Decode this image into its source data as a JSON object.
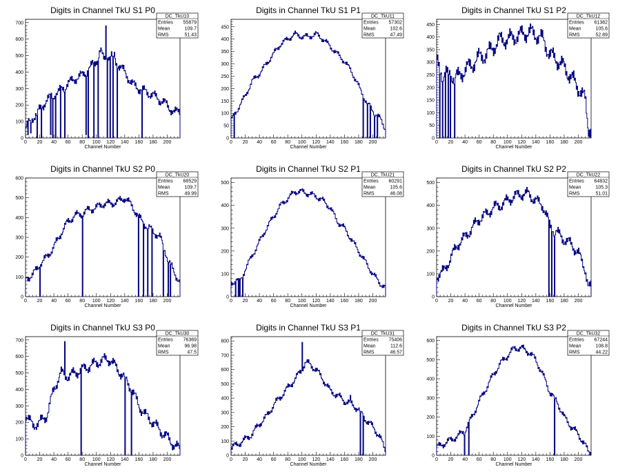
{
  "xlabel_text": "Channel Number",
  "stat_labels": [
    "Entries",
    "Mean",
    "RMS"
  ],
  "line_color": "#00007f",
  "chart_data": [
    {
      "type": "bar",
      "title": "Digits in Channel TkU S1 P0",
      "stat_name": "DC_TkU10",
      "entries": "55879",
      "mean": "109.7",
      "rms": "51.43",
      "xlabel": "Channel Number",
      "xlim": [
        0,
        218
      ],
      "ylim": [
        0,
        720
      ],
      "xticks": [
        0,
        20,
        40,
        60,
        80,
        100,
        120,
        140,
        160,
        180,
        200
      ],
      "yticks": [
        0,
        100,
        200,
        300,
        400,
        500,
        600,
        700
      ],
      "anchors": [
        [
          0,
          60
        ],
        [
          10,
          120
        ],
        [
          20,
          170
        ],
        [
          30,
          230
        ],
        [
          40,
          260
        ],
        [
          50,
          290
        ],
        [
          60,
          330
        ],
        [
          70,
          360
        ],
        [
          80,
          380
        ],
        [
          90,
          420
        ],
        [
          100,
          470
        ],
        [
          106,
          530
        ],
        [
          110,
          480
        ],
        [
          120,
          500
        ],
        [
          130,
          450
        ],
        [
          140,
          400
        ],
        [
          150,
          330
        ],
        [
          160,
          300
        ],
        [
          170,
          280
        ],
        [
          180,
          260
        ],
        [
          190,
          230
        ],
        [
          200,
          200
        ],
        [
          210,
          150
        ],
        [
          217,
          170
        ]
      ],
      "amp": 35,
      "dips": [
        [
          3,
          20
        ],
        [
          7,
          30
        ],
        [
          16,
          0
        ],
        [
          22,
          0
        ],
        [
          35,
          20
        ],
        [
          38,
          0
        ],
        [
          42,
          0
        ],
        [
          49,
          0
        ],
        [
          55,
          0
        ],
        [
          85,
          20
        ],
        [
          88,
          0
        ],
        [
          96,
          0
        ],
        [
          102,
          0
        ],
        [
          113,
          680
        ],
        [
          115,
          0
        ],
        [
          119,
          0
        ],
        [
          123,
          0
        ],
        [
          125,
          520
        ],
        [
          129,
          0
        ],
        [
          164,
          0
        ]
      ]
    },
    {
      "type": "bar",
      "title": "Digits in Channel TkU S1 P1",
      "stat_name": "DC_TkU11",
      "entries": "57302",
      "mean": "102.6",
      "rms": "47.49",
      "xlabel": "Channel Number",
      "xlim": [
        0,
        218
      ],
      "ylim": [
        0,
        480
      ],
      "xticks": [
        0,
        20,
        40,
        60,
        80,
        100,
        120,
        140,
        160,
        180,
        200
      ],
      "yticks": [
        0,
        50,
        100,
        150,
        200,
        250,
        300,
        350,
        400,
        450
      ],
      "anchors": [
        [
          0,
          70
        ],
        [
          10,
          120
        ],
        [
          20,
          170
        ],
        [
          30,
          230
        ],
        [
          40,
          260
        ],
        [
          50,
          300
        ],
        [
          60,
          340
        ],
        [
          70,
          380
        ],
        [
          80,
          400
        ],
        [
          90,
          420
        ],
        [
          100,
          410
        ],
        [
          110,
          410
        ],
        [
          120,
          420
        ],
        [
          130,
          400
        ],
        [
          140,
          370
        ],
        [
          150,
          340
        ],
        [
          160,
          310
        ],
        [
          170,
          270
        ],
        [
          180,
          210
        ],
        [
          190,
          150
        ],
        [
          200,
          110
        ],
        [
          210,
          80
        ],
        [
          217,
          40
        ]
      ],
      "amp": 14,
      "dips": [
        [
          4,
          0
        ],
        [
          186,
          0
        ],
        [
          192,
          0
        ],
        [
          196,
          0
        ],
        [
          202,
          0
        ],
        [
          206,
          0
        ]
      ]
    },
    {
      "type": "bar",
      "title": "Digits in Channel TkU S1 P2",
      "stat_name": "DC_TkU12",
      "entries": "61382",
      "mean": "105.6",
      "rms": "52.89",
      "xlabel": "Channel Number",
      "xlim": [
        0,
        218
      ],
      "ylim": [
        0,
        470
      ],
      "xticks": [
        0,
        20,
        40,
        60,
        80,
        100,
        120,
        140,
        160,
        180,
        200
      ],
      "yticks": [
        0,
        50,
        100,
        150,
        200,
        250,
        300,
        350,
        400,
        450
      ],
      "anchors": [
        [
          0,
          300
        ],
        [
          10,
          250
        ],
        [
          20,
          250
        ],
        [
          30,
          240
        ],
        [
          40,
          270
        ],
        [
          50,
          290
        ],
        [
          60,
          320
        ],
        [
          70,
          330
        ],
        [
          80,
          360
        ],
        [
          90,
          390
        ],
        [
          100,
          390
        ],
        [
          110,
          400
        ],
        [
          120,
          410
        ],
        [
          130,
          420
        ],
        [
          140,
          410
        ],
        [
          150,
          390
        ],
        [
          160,
          330
        ],
        [
          170,
          310
        ],
        [
          180,
          280
        ],
        [
          190,
          240
        ],
        [
          200,
          200
        ],
        [
          210,
          150
        ],
        [
          214,
          40
        ]
      ],
      "amp": 40,
      "dips": [
        [
          4,
          0
        ],
        [
          8,
          0
        ],
        [
          12,
          0
        ],
        [
          16,
          0
        ],
        [
          19,
          0
        ],
        [
          25,
          0
        ]
      ]
    },
    {
      "type": "bar",
      "title": "Digits in Channel TkU S2 P0",
      "stat_name": "DC_TkU20",
      "entries": "68529",
      "mean": "109.7",
      "rms": "49.99",
      "xlabel": "Channel Number",
      "xlim": [
        0,
        218
      ],
      "ylim": [
        0,
        600
      ],
      "xticks": [
        0,
        20,
        40,
        60,
        80,
        100,
        120,
        140,
        160,
        180,
        200
      ],
      "yticks": [
        0,
        100,
        200,
        300,
        400,
        500,
        600
      ],
      "anchors": [
        [
          0,
          90
        ],
        [
          10,
          110
        ],
        [
          20,
          160
        ],
        [
          30,
          200
        ],
        [
          40,
          250
        ],
        [
          50,
          320
        ],
        [
          60,
          380
        ],
        [
          70,
          410
        ],
        [
          80,
          420
        ],
        [
          90,
          440
        ],
        [
          100,
          450
        ],
        [
          110,
          470
        ],
        [
          120,
          470
        ],
        [
          130,
          480
        ],
        [
          140,
          500
        ],
        [
          150,
          460
        ],
        [
          160,
          400
        ],
        [
          170,
          360
        ],
        [
          180,
          330
        ],
        [
          190,
          300
        ],
        [
          200,
          200
        ],
        [
          210,
          120
        ],
        [
          217,
          80
        ]
      ],
      "amp": 24,
      "dips": [
        [
          20,
          0
        ],
        [
          80,
          0
        ],
        [
          159,
          0
        ],
        [
          166,
          0
        ],
        [
          172,
          0
        ],
        [
          178,
          0
        ],
        [
          194,
          0
        ],
        [
          201,
          0
        ],
        [
          204,
          0
        ]
      ]
    },
    {
      "type": "bar",
      "title": "Digits in Channel TkU S2 P1",
      "stat_name": "DC_TkU21",
      "entries": "60291",
      "mean": "105.6",
      "rms": "46.08",
      "xlabel": "Channel Number",
      "xlim": [
        0,
        218
      ],
      "ylim": [
        0,
        520
      ],
      "xticks": [
        0,
        20,
        40,
        60,
        80,
        100,
        120,
        140,
        160,
        180,
        200
      ],
      "yticks": [
        0,
        100,
        200,
        300,
        400,
        500
      ],
      "anchors": [
        [
          0,
          60
        ],
        [
          15,
          80
        ],
        [
          20,
          120
        ],
        [
          30,
          180
        ],
        [
          40,
          240
        ],
        [
          50,
          300
        ],
        [
          60,
          350
        ],
        [
          70,
          400
        ],
        [
          80,
          430
        ],
        [
          90,
          460
        ],
        [
          100,
          460
        ],
        [
          110,
          450
        ],
        [
          120,
          440
        ],
        [
          130,
          420
        ],
        [
          140,
          390
        ],
        [
          150,
          330
        ],
        [
          160,
          300
        ],
        [
          170,
          250
        ],
        [
          180,
          200
        ],
        [
          190,
          150
        ],
        [
          200,
          100
        ],
        [
          210,
          60
        ],
        [
          217,
          40
        ]
      ],
      "amp": 16,
      "dips": [
        [
          6,
          0
        ],
        [
          10,
          0
        ],
        [
          12,
          0
        ],
        [
          16,
          0
        ]
      ]
    },
    {
      "type": "bar",
      "title": "Digits in Channel TkU S2 P2",
      "stat_name": "DC_TkU22",
      "entries": "64832",
      "mean": "105.3",
      "rms": "51.01",
      "xlabel": "Channel Number",
      "xlim": [
        0,
        218
      ],
      "ylim": [
        0,
        520
      ],
      "xticks": [
        0,
        20,
        40,
        60,
        80,
        100,
        120,
        140,
        160,
        180,
        200
      ],
      "yticks": [
        0,
        100,
        200,
        300,
        400,
        500
      ],
      "anchors": [
        [
          0,
          90
        ],
        [
          10,
          110
        ],
        [
          20,
          170
        ],
        [
          30,
          230
        ],
        [
          40,
          260
        ],
        [
          50,
          300
        ],
        [
          60,
          340
        ],
        [
          70,
          360
        ],
        [
          80,
          390
        ],
        [
          90,
          400
        ],
        [
          100,
          420
        ],
        [
          110,
          440
        ],
        [
          120,
          450
        ],
        [
          130,
          450
        ],
        [
          140,
          420
        ],
        [
          150,
          400
        ],
        [
          160,
          310
        ],
        [
          170,
          280
        ],
        [
          180,
          250
        ],
        [
          190,
          230
        ],
        [
          200,
          190
        ],
        [
          210,
          120
        ],
        [
          214,
          40
        ]
      ],
      "amp": 30,
      "dips": [
        [
          158,
          0
        ],
        [
          162,
          0
        ],
        [
          166,
          0
        ]
      ]
    },
    {
      "type": "bar",
      "title": "Digits in Channel TkU S3 P0",
      "stat_name": "DC_TkU30",
      "entries": "76369",
      "mean": "96.98",
      "rms": "47.5",
      "xlabel": "Channel Number",
      "xlim": [
        0,
        218
      ],
      "ylim": [
        0,
        720
      ],
      "xticks": [
        0,
        20,
        40,
        60,
        80,
        100,
        120,
        140,
        160,
        180,
        200
      ],
      "yticks": [
        0,
        100,
        200,
        300,
        400,
        500,
        600,
        700
      ],
      "anchors": [
        [
          0,
          250
        ],
        [
          10,
          180
        ],
        [
          20,
          200
        ],
        [
          30,
          240
        ],
        [
          40,
          400
        ],
        [
          50,
          500
        ],
        [
          60,
          480
        ],
        [
          70,
          500
        ],
        [
          80,
          520
        ],
        [
          90,
          540
        ],
        [
          100,
          560
        ],
        [
          110,
          580
        ],
        [
          120,
          580
        ],
        [
          130,
          520
        ],
        [
          140,
          470
        ],
        [
          150,
          400
        ],
        [
          160,
          300
        ],
        [
          170,
          240
        ],
        [
          180,
          200
        ],
        [
          190,
          150
        ],
        [
          200,
          110
        ],
        [
          210,
          60
        ],
        [
          217,
          40
        ]
      ],
      "amp": 40,
      "dips": [
        [
          55,
          690
        ],
        [
          78,
          0
        ],
        [
          140,
          0
        ],
        [
          149,
          0
        ]
      ]
    },
    {
      "type": "bar",
      "title": "Digits in Channel TkU S3 P1",
      "stat_name": "DC_TkU31",
      "entries": "75406",
      "mean": "112.6",
      "rms": "46.57",
      "xlabel": "Channel Number",
      "xlim": [
        0,
        218
      ],
      "ylim": [
        0,
        830
      ],
      "xticks": [
        0,
        20,
        40,
        60,
        80,
        100,
        120,
        140,
        160,
        180,
        200
      ],
      "yticks": [
        0,
        100,
        200,
        300,
        400,
        500,
        600,
        700,
        800
      ],
      "anchors": [
        [
          0,
          50
        ],
        [
          10,
          80
        ],
        [
          20,
          110
        ],
        [
          30,
          150
        ],
        [
          40,
          220
        ],
        [
          50,
          270
        ],
        [
          60,
          350
        ],
        [
          70,
          410
        ],
        [
          80,
          470
        ],
        [
          90,
          530
        ],
        [
          100,
          600
        ],
        [
          105,
          650
        ],
        [
          110,
          640
        ],
        [
          120,
          600
        ],
        [
          130,
          530
        ],
        [
          140,
          450
        ],
        [
          150,
          420
        ],
        [
          160,
          380
        ],
        [
          170,
          360
        ],
        [
          180,
          320
        ],
        [
          190,
          250
        ],
        [
          200,
          200
        ],
        [
          210,
          130
        ],
        [
          217,
          40
        ]
      ],
      "amp": 30,
      "dips": [
        [
          100,
          790
        ],
        [
          168,
          420
        ],
        [
          182,
          0
        ],
        [
          186,
          0
        ]
      ]
    },
    {
      "type": "bar",
      "title": "Digits in Channel TkU S3 P2",
      "stat_name": "DC_TkU32",
      "entries": "67244",
      "mean": "108.8",
      "rms": "44.22",
      "xlabel": "Channel Number",
      "xlim": [
        0,
        218
      ],
      "ylim": [
        0,
        620
      ],
      "xticks": [
        0,
        20,
        40,
        60,
        80,
        100,
        120,
        140,
        160,
        180,
        200
      ],
      "yticks": [
        0,
        100,
        200,
        300,
        400,
        500,
        600
      ],
      "anchors": [
        [
          0,
          40
        ],
        [
          10,
          60
        ],
        [
          20,
          80
        ],
        [
          30,
          100
        ],
        [
          40,
          130
        ],
        [
          50,
          200
        ],
        [
          60,
          280
        ],
        [
          70,
          350
        ],
        [
          80,
          420
        ],
        [
          90,
          480
        ],
        [
          100,
          520
        ],
        [
          110,
          560
        ],
        [
          120,
          560
        ],
        [
          130,
          540
        ],
        [
          140,
          500
        ],
        [
          150,
          420
        ],
        [
          160,
          330
        ],
        [
          170,
          280
        ],
        [
          180,
          200
        ],
        [
          190,
          150
        ],
        [
          200,
          110
        ],
        [
          210,
          50
        ],
        [
          214,
          20
        ]
      ],
      "amp": 22,
      "dips": [
        [
          39,
          0
        ],
        [
          45,
          0
        ],
        [
          166,
          0
        ]
      ]
    }
  ]
}
